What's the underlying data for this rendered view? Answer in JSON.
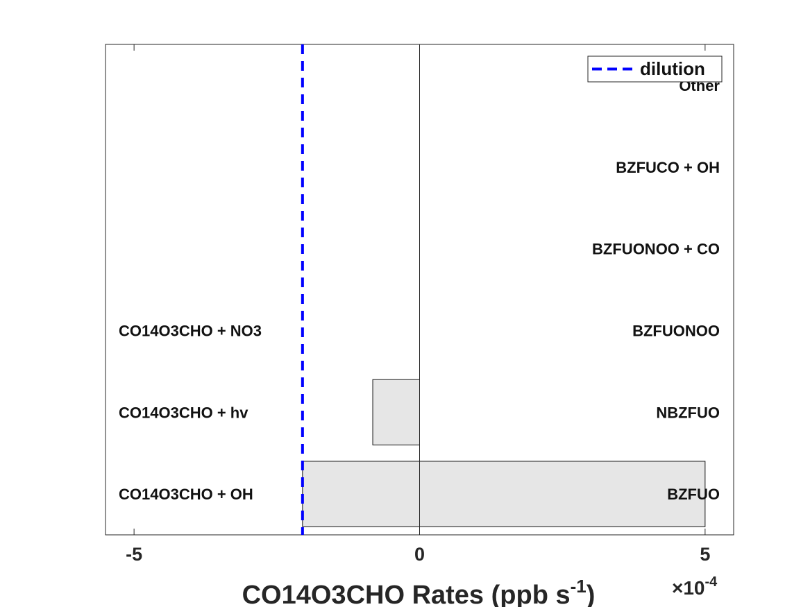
{
  "chart_data": {
    "type": "bar",
    "orientation": "horizontal",
    "xlabel": "CO14O3CHO Rates (ppb s",
    "xlabel_superscript": "-1",
    "xlabel_suffix": ")",
    "x_exponent_prefix": "×10",
    "x_exponent_power": "-4",
    "x_scale_factor": 0.0001,
    "xlim": [
      -5.5,
      5.5
    ],
    "xticks": [
      -5,
      0,
      5
    ],
    "xtick_labels": [
      "-5",
      "0",
      "5"
    ],
    "rows": 6,
    "loss_labels": [
      "CO14O3CHO + OH",
      "CO14O3CHO + hv",
      "CO14O3CHO + NO3"
    ],
    "production_labels": [
      "BZFUO",
      "NBZFUO",
      "BZFUONOO",
      "BZFUONOO + CO",
      "BZFUCO + OH",
      "Other"
    ],
    "bars": [
      {
        "row": 0,
        "start": -2.05,
        "end": 5.0
      },
      {
        "row": 1,
        "start": -0.82,
        "end": 0.0
      }
    ],
    "dilution": {
      "value": -2.05,
      "label": "dilution",
      "color": "#0000ff"
    },
    "legend_position": "top-right",
    "bar_color": "#e6e6e6",
    "grid": false
  }
}
